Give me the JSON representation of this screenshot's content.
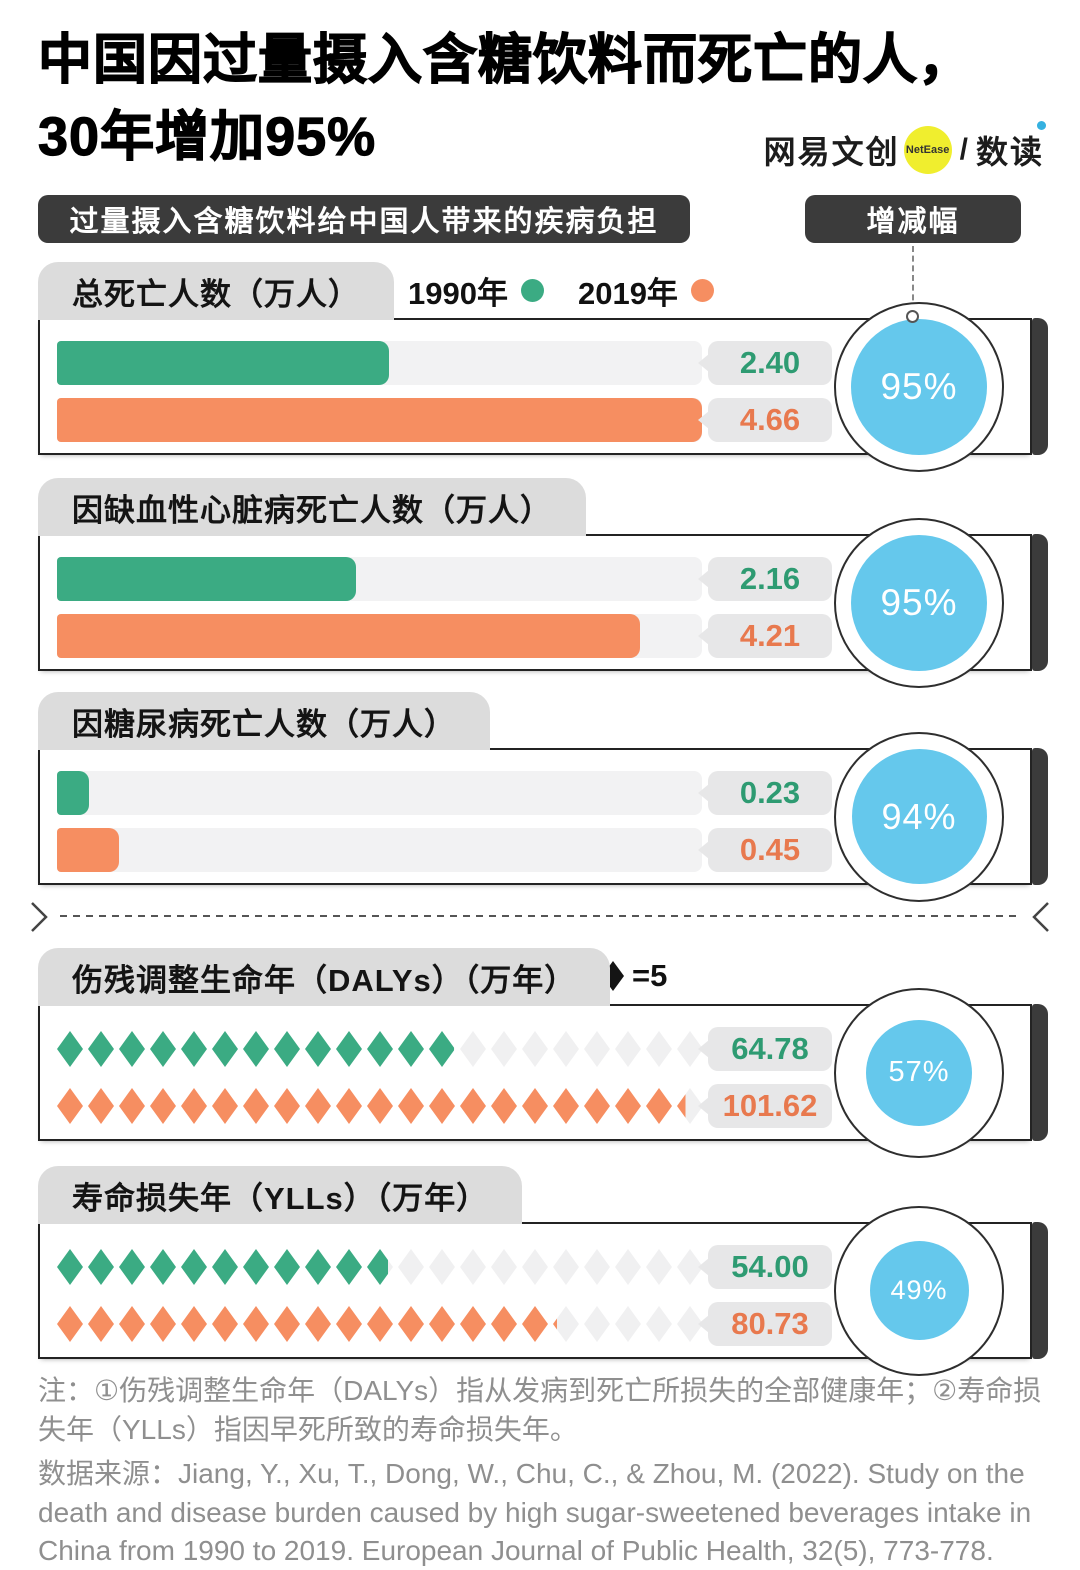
{
  "header": {
    "title_line1": "中国因过量摄入含糖饮料而死亡的人，",
    "title_line2": "30年增加95%",
    "logo": {
      "brand": "网易文创",
      "circle": "NetEase",
      "slash": "/",
      "product": "数读"
    },
    "badge_left": "过量摄入含糖饮料给中国人带来的疾病负担",
    "badge_right": "增减幅"
  },
  "legend": {
    "y1990": "1990年",
    "y2019": "2019年",
    "diamond_unit": "=5"
  },
  "colors": {
    "green": "#3bab83",
    "orange": "#f68e61",
    "green_text": "#2e9b72",
    "orange_text": "#e8794e",
    "blue": "#65c8ec",
    "dark": "#3b3b3b",
    "tab_gray": "#dcdcdc",
    "track_gray": "#f2f2f3",
    "pill_gray": "#e7e7e8",
    "empty_icon": "#f0f0f1",
    "note_gray": "#8f8f8f",
    "logo_yellow": "#f0ee2e"
  },
  "chart_data": [
    {
      "type": "bar",
      "title": "总死亡人数（万人）",
      "categories": [
        "1990年",
        "2019年"
      ],
      "values": [
        2.4,
        4.66
      ],
      "value_labels": [
        "2.40",
        "4.66"
      ],
      "change": "95%",
      "xmax": 4.66
    },
    {
      "type": "bar",
      "title": "因缺血性心脏病死亡人数（万人）",
      "categories": [
        "1990年",
        "2019年"
      ],
      "values": [
        2.16,
        4.21
      ],
      "value_labels": [
        "2.16",
        "4.21"
      ],
      "change": "95%",
      "xmax": 4.66
    },
    {
      "type": "bar",
      "title": "因糖尿病死亡人数（万人）",
      "categories": [
        "1990年",
        "2019年"
      ],
      "values": [
        0.23,
        0.45
      ],
      "value_labels": [
        "0.23",
        "0.45"
      ],
      "change": "94%",
      "xmax": 4.66
    },
    {
      "type": "pictogram",
      "title": "伤残调整生命年（DALYs）（万年）",
      "categories": [
        "1990年",
        "2019年"
      ],
      "values": [
        64.78,
        101.62
      ],
      "value_labels": [
        "64.78",
        "101.62"
      ],
      "unit_per_icon": 5,
      "icons_total": 21,
      "change": "57%"
    },
    {
      "type": "pictogram",
      "title": "寿命损失年（YLLs）（万年）",
      "categories": [
        "1990年",
        "2019年"
      ],
      "values": [
        54.0,
        80.73
      ],
      "value_labels": [
        "54.00",
        "80.73"
      ],
      "unit_per_icon": 5,
      "icons_total": 21,
      "change": "49%"
    }
  ],
  "footer": {
    "note": "注：①伤残调整生命年（DALYs）指从发病到死亡所损失的全部健康年；②寿命损失年（YLLs）指因早死所致的寿命损失年。",
    "source": "数据来源：Jiang, Y., Xu, T., Dong, W., Chu, C., & Zhou, M. (2022). Study on the death and disease burden caused by high sugar-sweetened beverages intake in China from 1990 to 2019. European Journal of Public Health, 32(5), 773-778."
  }
}
